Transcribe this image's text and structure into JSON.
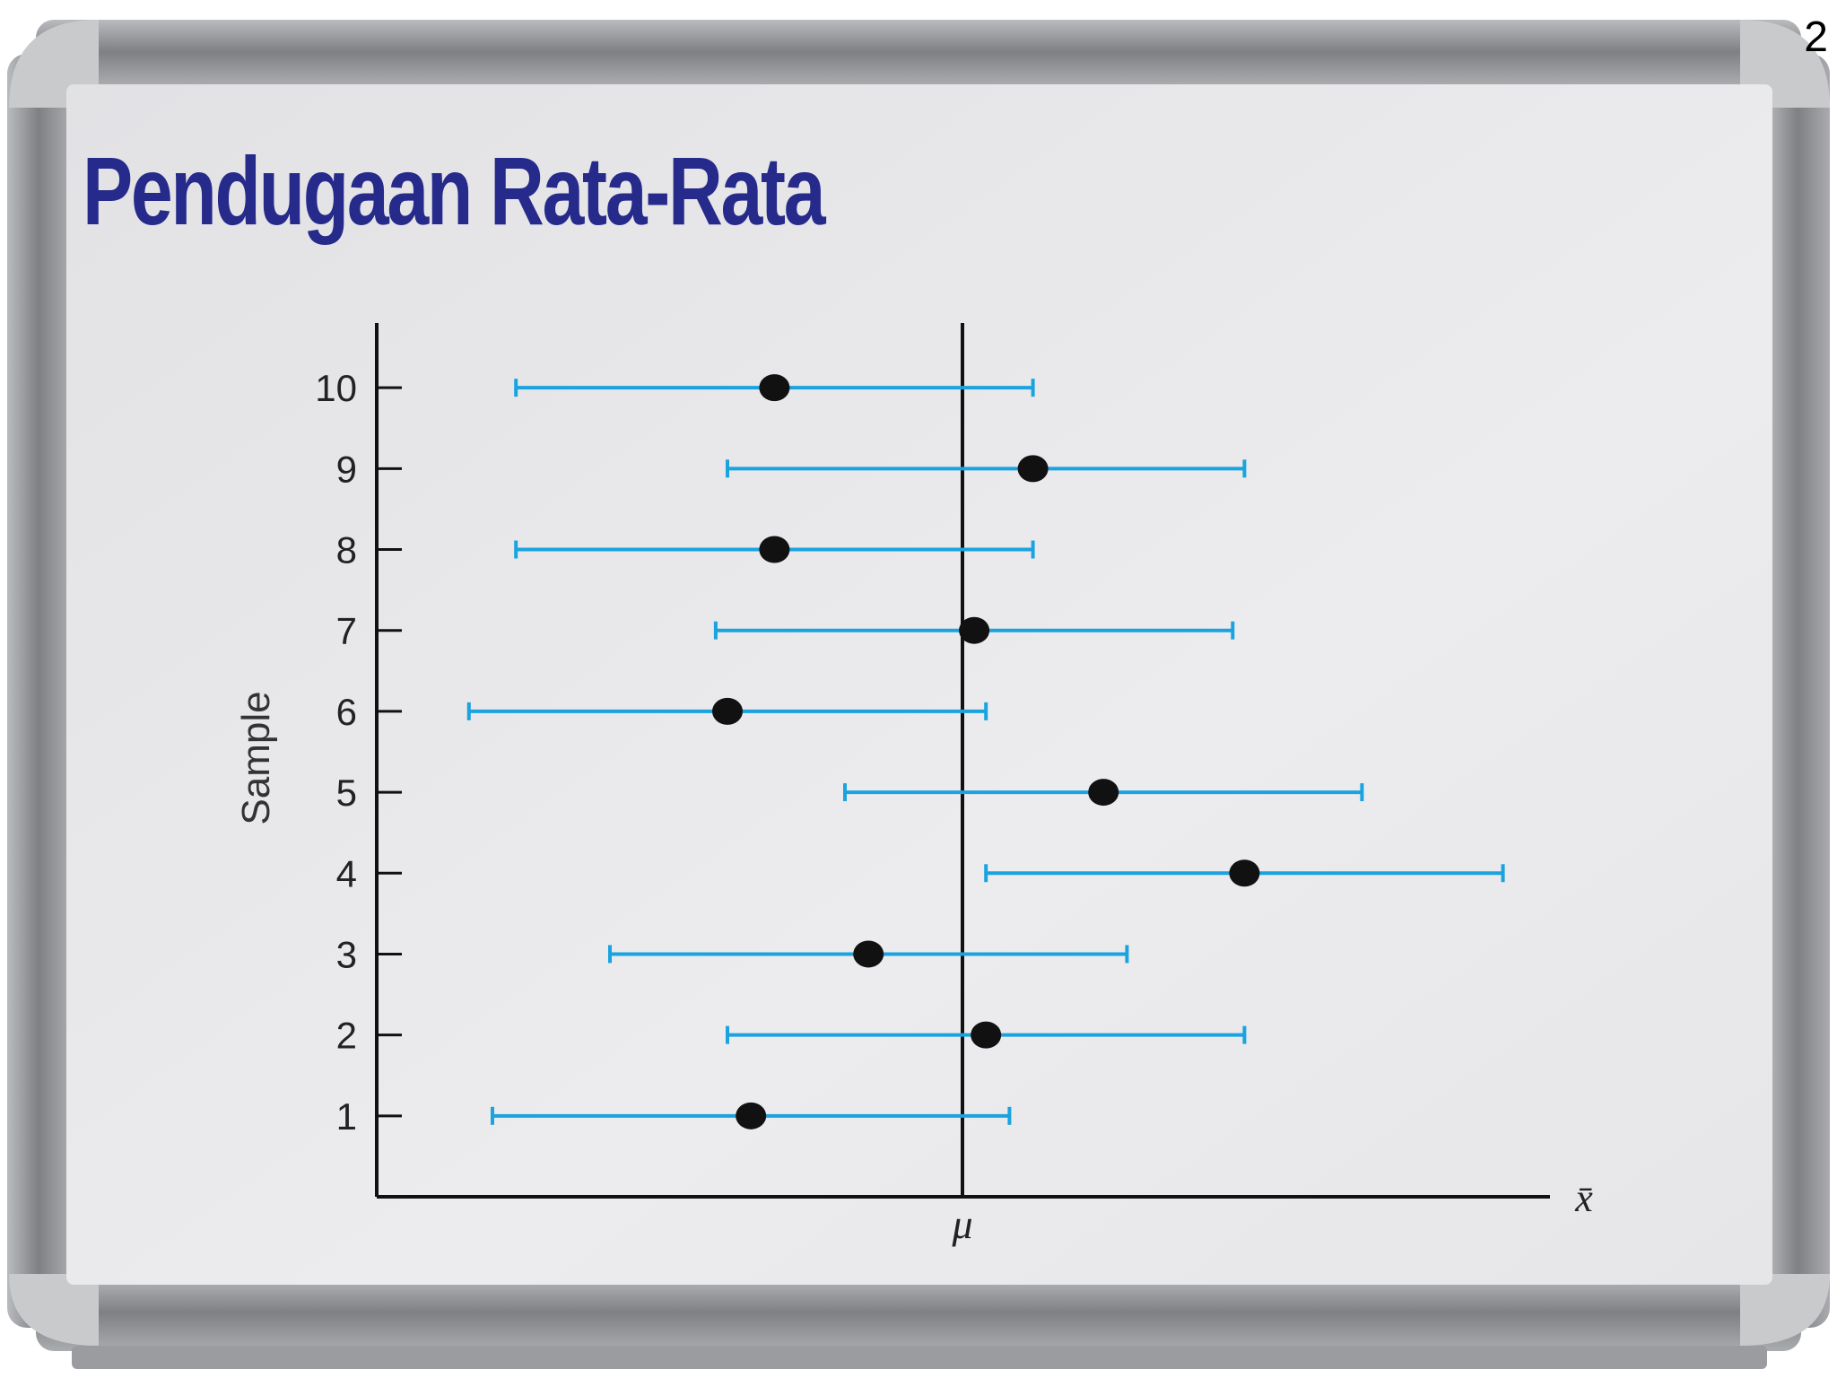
{
  "slide": {
    "title": "Pendugaan Rata-Rata",
    "page_number": "2"
  },
  "colors": {
    "title": "#262a8a",
    "interval": "#1aa3de",
    "point": "#111111",
    "axis": "#111111",
    "board_surface": "#e4e4e6",
    "frame": "#8a8c8f"
  },
  "chart_data": {
    "type": "scatter",
    "ylabel": "Sample",
    "xlabel": "x̄",
    "x_marker_label": "μ",
    "mu": 0,
    "xlim": [
      -5,
      5
    ],
    "ylim": [
      0,
      10.8
    ],
    "yticks": [
      1,
      2,
      3,
      4,
      5,
      6,
      7,
      8,
      9,
      10
    ],
    "intervals": [
      {
        "sample": 1,
        "mean": -1.8,
        "lower": -4.0,
        "upper": 0.4
      },
      {
        "sample": 2,
        "mean": 0.2,
        "lower": -2.0,
        "upper": 2.4
      },
      {
        "sample": 3,
        "mean": -0.8,
        "lower": -3.0,
        "upper": 1.4
      },
      {
        "sample": 4,
        "mean": 2.4,
        "lower": 0.2,
        "upper": 4.6
      },
      {
        "sample": 5,
        "mean": 1.2,
        "lower": -1.0,
        "upper": 3.4
      },
      {
        "sample": 6,
        "mean": -2.0,
        "lower": -4.2,
        "upper": 0.2
      },
      {
        "sample": 7,
        "mean": 0.1,
        "lower": -2.1,
        "upper": 2.3
      },
      {
        "sample": 8,
        "mean": -1.6,
        "lower": -3.8,
        "upper": 0.6
      },
      {
        "sample": 9,
        "mean": 0.6,
        "lower": -2.0,
        "upper": 2.4
      },
      {
        "sample": 10,
        "mean": -1.6,
        "lower": -3.8,
        "upper": 0.6
      }
    ],
    "grid": false,
    "legend": "none"
  }
}
